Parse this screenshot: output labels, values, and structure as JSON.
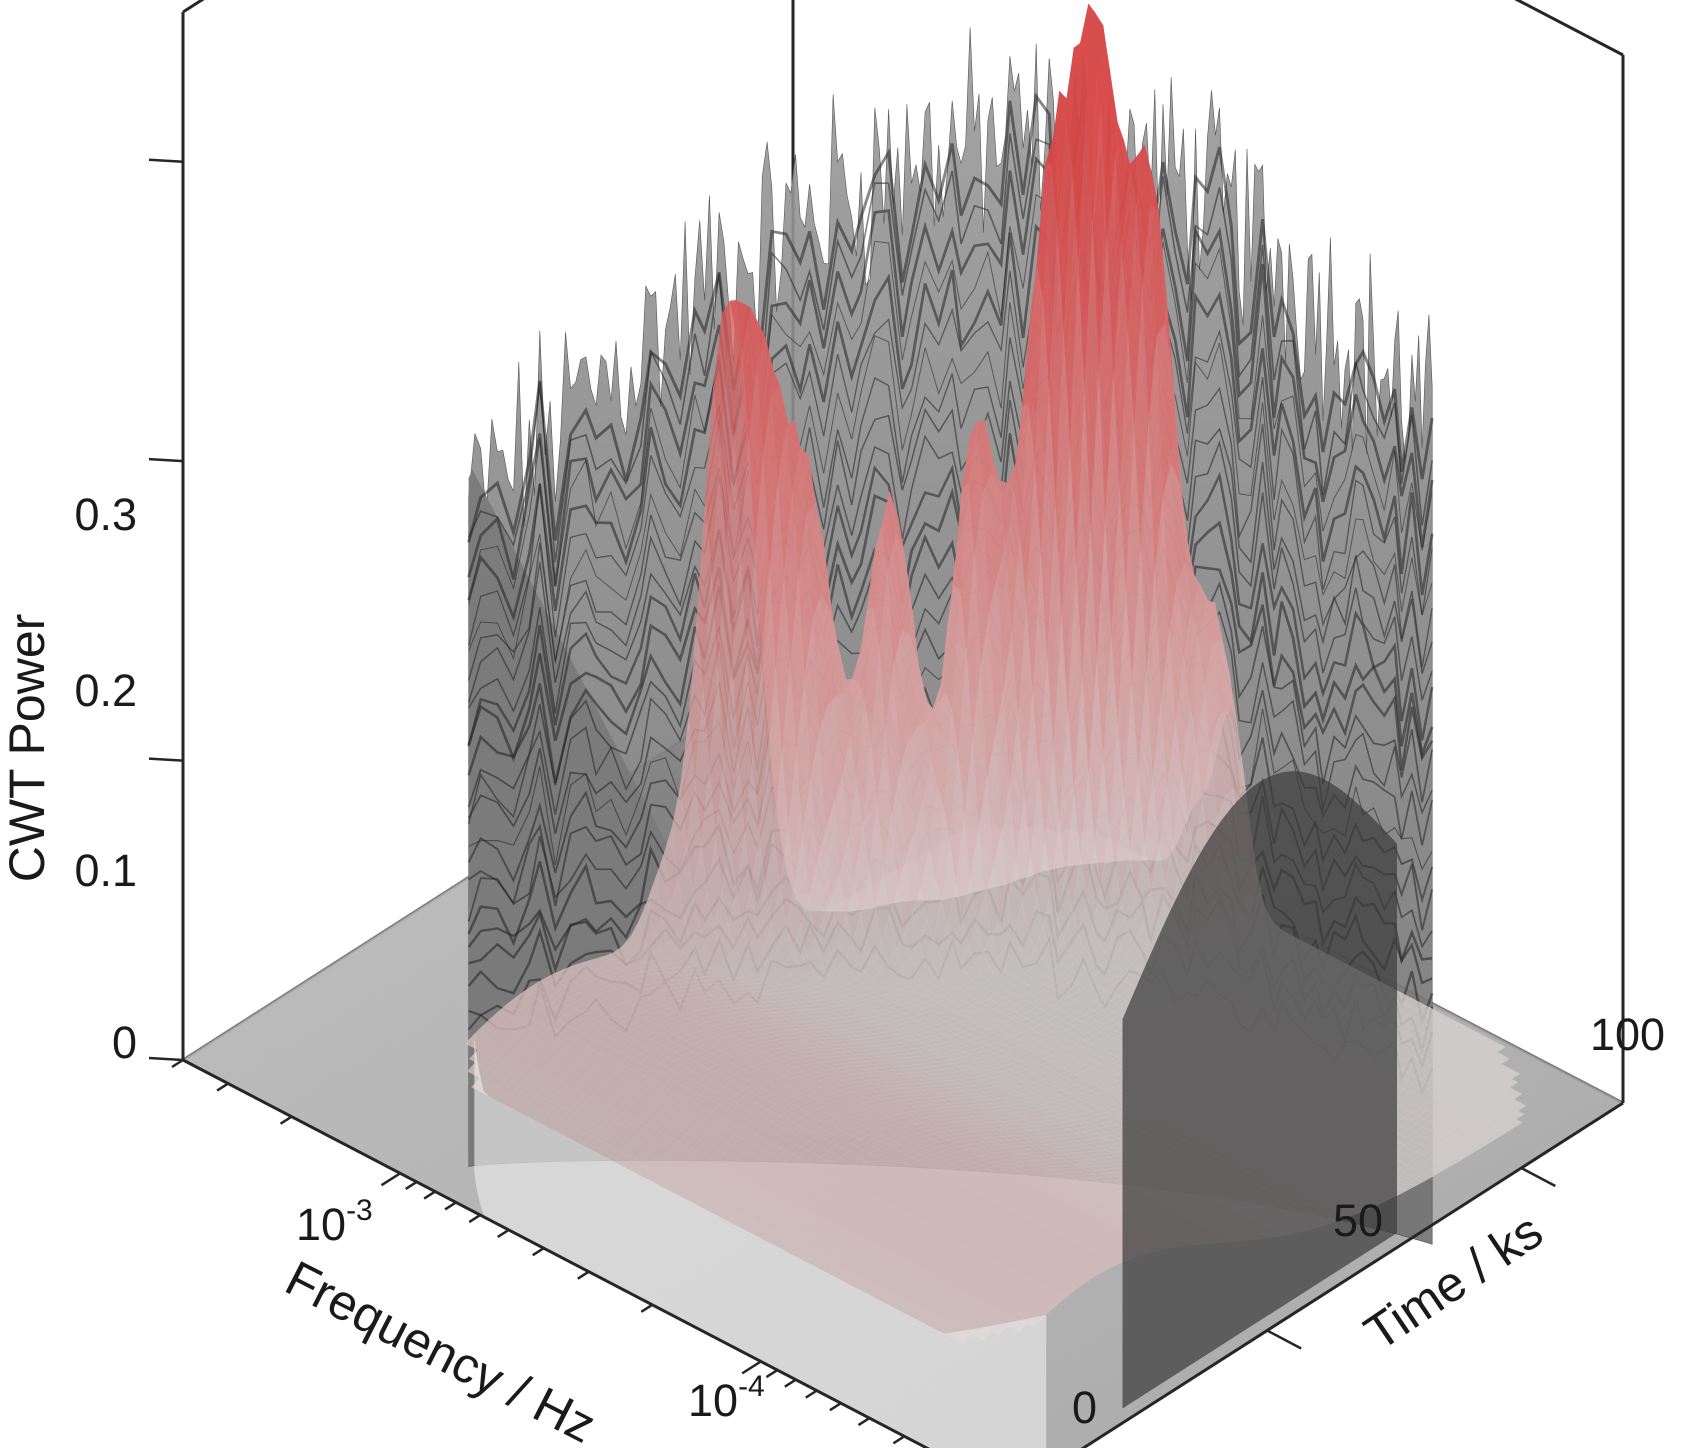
{
  "chart_data": {
    "type": "surface",
    "xlabel": "Frequency / Hz",
    "ylabel": "Time / ks",
    "zlabel": "CWT Power",
    "x_scale": "log",
    "x_ticks": [
      {
        "value": 0.001,
        "base": "10",
        "exponent": "-3"
      },
      {
        "value": 0.0001,
        "base": "10",
        "exponent": "-4"
      }
    ],
    "y_ticks": [
      {
        "value": 0,
        "label": "0"
      },
      {
        "value": 50,
        "label": "50"
      },
      {
        "value": 100,
        "label": "100"
      }
    ],
    "z_ticks": [
      {
        "value": 0,
        "label": "0"
      },
      {
        "value": 0.1,
        "label": "0.1"
      },
      {
        "value": 0.2,
        "label": "0.2"
      },
      {
        "value": 0.3,
        "label": "0.3"
      }
    ],
    "xlim": [
      2e-05,
      0.004
    ],
    "ylim": [
      0,
      120
    ],
    "zlim": [
      0,
      0.35
    ],
    "grid": false,
    "colors": {
      "surface_low": "#d6d6d6",
      "surface_high": "#d64545",
      "noise_surface": "#8c8c8c",
      "floor": "#a9a9a9",
      "axes": "#262626"
    },
    "peaks": [
      {
        "frequency": 0.0015,
        "time": 20,
        "power": 0.06
      },
      {
        "frequency": 0.0012,
        "time": 30,
        "power": 0.065
      },
      {
        "frequency": 0.0011,
        "time": 40,
        "power": 0.05
      },
      {
        "frequency": 0.0009,
        "time": 45,
        "power": 0.1
      },
      {
        "frequency": 0.0008,
        "time": 55,
        "power": 0.17
      },
      {
        "frequency": 0.0007,
        "time": 60,
        "power": 0.16
      },
      {
        "frequency": 0.0006,
        "time": 65,
        "power": 0.14
      },
      {
        "frequency": 0.0005,
        "time": 75,
        "power": 0.15
      },
      {
        "frequency": 0.0004,
        "time": 85,
        "power": 0.17
      },
      {
        "frequency": 0.00035,
        "time": 95,
        "power": 0.22
      },
      {
        "frequency": 0.0003,
        "time": 100,
        "power": 0.26
      },
      {
        "frequency": 0.00025,
        "time": 105,
        "power": 0.23
      },
      {
        "frequency": 0.0002,
        "time": 110,
        "power": 0.1
      }
    ]
  }
}
